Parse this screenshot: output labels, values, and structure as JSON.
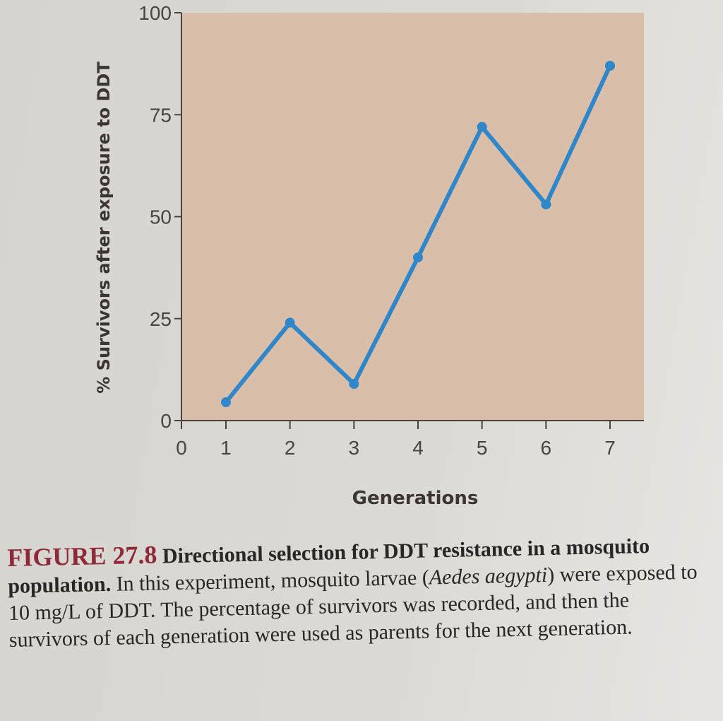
{
  "chart_data": {
    "type": "line",
    "title": "",
    "xlabel": "Generations",
    "ylabel": "% Survivors after exposure to DDT",
    "x": [
      1,
      2,
      3,
      4,
      5,
      6,
      7
    ],
    "series": [
      {
        "name": "% Survivors",
        "values": [
          4.5,
          24,
          9,
          40,
          72,
          53,
          87
        ],
        "color": "#2f86c8"
      }
    ],
    "xticks": [
      "0",
      "1",
      "2",
      "3",
      "4",
      "5",
      "6",
      "7"
    ],
    "yticks": [
      "0",
      "25",
      "50",
      "75",
      "100"
    ],
    "xlim": [
      0,
      7.3
    ],
    "ylim": [
      0,
      100
    ],
    "grid": false,
    "legend": "none",
    "plot_background": "#d9bea9"
  },
  "caption": {
    "figure_number": "FIGURE 27.8",
    "title": "Directional selection for DDT resistance in a mosquito population.",
    "body_1": " In this experiment, mosquito larvae (",
    "species": "Aedes aegypti",
    "body_2": ") were exposed to 10 mg/L of DDT. The percentage of survivors was recorded, and then the survivors of each generation were used as parents for the next generation."
  }
}
